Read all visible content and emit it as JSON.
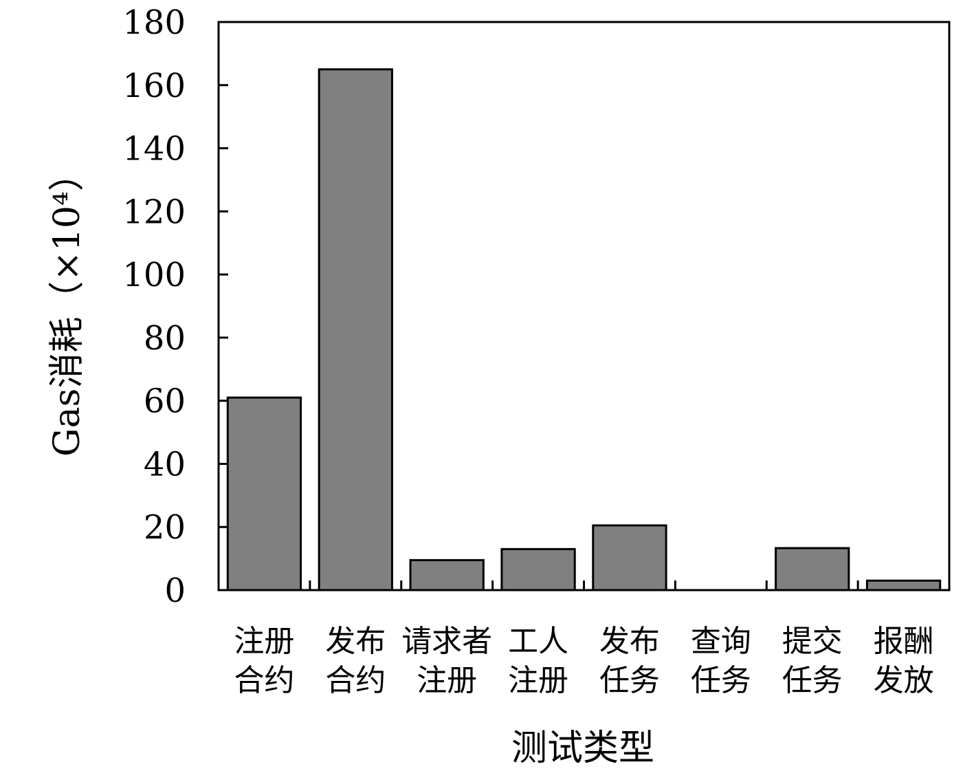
{
  "chart_data": {
    "type": "bar",
    "categories": [
      [
        "注册",
        "合约"
      ],
      [
        "发布",
        "合约"
      ],
      [
        "请求者",
        "注册"
      ],
      [
        "工人",
        "注册"
      ],
      [
        "发布",
        "任务"
      ],
      [
        "查询",
        "任务"
      ],
      [
        "提交",
        "任务"
      ],
      [
        "报酬",
        "发放"
      ]
    ],
    "values": [
      61,
      165,
      9.5,
      13,
      20.5,
      0,
      13.3,
      3
    ],
    "xlabel": "测试类型",
    "ylabel": "Gas消耗（×10⁴）",
    "ylim": [
      0,
      180
    ],
    "yticks": [
      0,
      20,
      40,
      60,
      80,
      100,
      120,
      140,
      160,
      180
    ],
    "bar_color": "#808080",
    "edge_color": "#000000",
    "grid": false
  }
}
